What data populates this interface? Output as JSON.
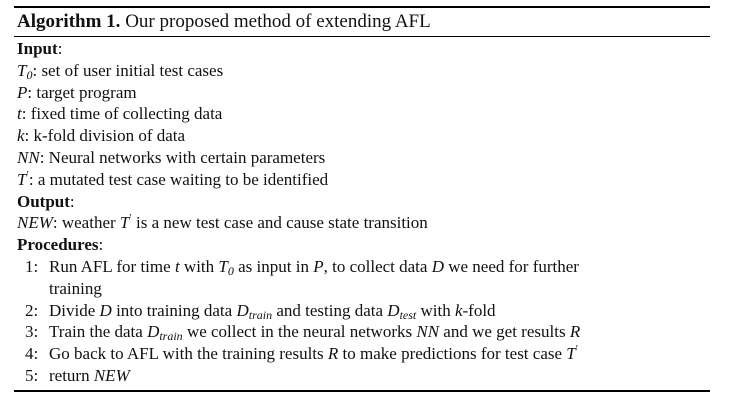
{
  "caption": {
    "number": "Algorithm 1.",
    "title": "Our proposed method of extending AFL"
  },
  "input": {
    "heading": "Input",
    "items": [
      {
        "symbol": "T",
        "sub": "0",
        "text": ": set of user initial test cases"
      },
      {
        "symbol": "P",
        "text": ": target program"
      },
      {
        "symbol": "t",
        "text": ": fixed time of collecting data"
      },
      {
        "symbol": "k",
        "text": ": k-fold division of data"
      },
      {
        "symbol": "NN",
        "text": ": Neural networks with certain parameters"
      },
      {
        "symbol": "T",
        "sup": "′",
        "text": ": a mutated test case waiting to be identified"
      }
    ]
  },
  "output": {
    "heading": "Output",
    "symbol": "NEW",
    "text_a": ": weather ",
    "sym2": "T",
    "sup2": "′",
    "text_b": " is a new test case and cause state transition"
  },
  "procedures": {
    "heading": "Procedures",
    "steps": [
      {
        "no": "1:",
        "t1": "Run AFL for time ",
        "m1": "t",
        "t2": " with ",
        "m2": "T",
        "s2": "0",
        "t3": " as input in ",
        "m3": "P",
        "t4": ", to collect data ",
        "m4": "D",
        "t5": " we need for further",
        "cont": "training"
      },
      {
        "no": "2:",
        "t1": "Divide ",
        "m1": "D",
        "t2": " into training data ",
        "m2": "D",
        "s2": "train",
        "t3": " and testing data ",
        "m3": "D",
        "s3": "test",
        "t4": " with ",
        "m4": "k",
        "t5": "-fold"
      },
      {
        "no": "3:",
        "t1": "Train the data ",
        "m1": "D",
        "s1": "train",
        "t2": " we collect in the neural networks ",
        "m2": "NN",
        "t3": " and we get results ",
        "m3": "R"
      },
      {
        "no": "4:",
        "t1": "Go back to AFL with the training results ",
        "m1": "R",
        "t2": " to make predictions for test case ",
        "m2": "T",
        "p2": "′"
      },
      {
        "no": "5:",
        "t1": "return ",
        "m1": "NEW"
      }
    ]
  }
}
